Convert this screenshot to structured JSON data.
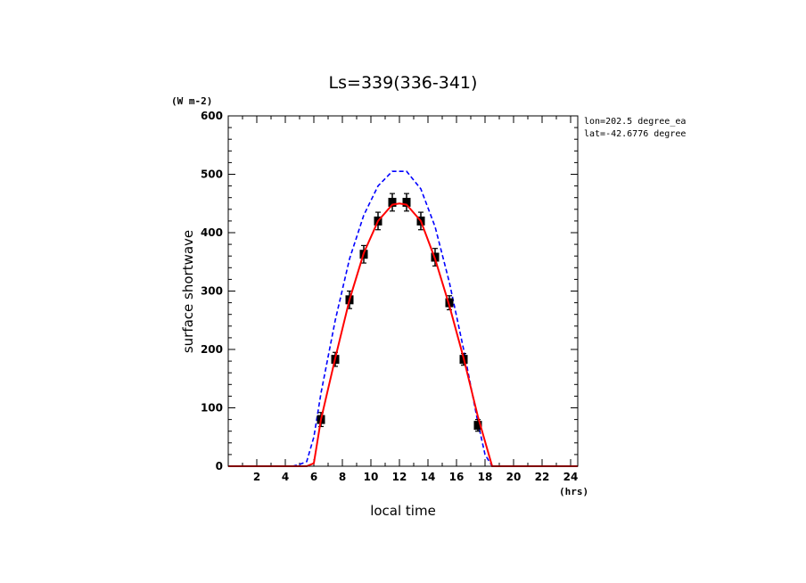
{
  "chart_data": {
    "type": "line",
    "title": "Ls=339(336-341)",
    "y_unit": "(W m-2)",
    "x_unit": "(hrs)",
    "xlabel": "local time",
    "ylabel": "surface shortwave",
    "annotations": [
      "lon=202.5 degree_ea",
      "lat=-42.6776 degree"
    ],
    "xlim": [
      0,
      24.5
    ],
    "ylim": [
      0,
      600
    ],
    "x_ticks": [
      2,
      4,
      6,
      8,
      10,
      12,
      14,
      16,
      18,
      20,
      22,
      24
    ],
    "y_ticks": [
      0,
      100,
      200,
      300,
      400,
      500,
      600
    ],
    "grid": false,
    "series": [
      {
        "style": "dashed",
        "color": "#0000ff",
        "x": [
          0,
          0.5,
          1.5,
          2.5,
          3.5,
          4.5,
          5.0,
          5.5,
          6.0,
          6.5,
          7.5,
          8.5,
          9.5,
          10.5,
          11.5,
          12.5,
          13.5,
          14.5,
          15.5,
          16.5,
          17.5,
          18.0,
          18.5,
          19.5,
          20.5,
          21.5,
          22.5,
          23.5,
          24.5
        ],
        "y": [
          0,
          0,
          0,
          0,
          0,
          0,
          3,
          8,
          50,
          125,
          250,
          355,
          430,
          480,
          505,
          505,
          475,
          410,
          315,
          200,
          75,
          20,
          0,
          0,
          0,
          0,
          0,
          0,
          0
        ]
      },
      {
        "style": "solid",
        "color": "#ff0000",
        "x": [
          0,
          0.5,
          1.5,
          2.5,
          3.5,
          4.5,
          5.5,
          6.0,
          6.5,
          7.5,
          8.5,
          9.5,
          10.5,
          11.5,
          12.0,
          12.5,
          13.5,
          14.5,
          15.5,
          16.5,
          17.5,
          18.5,
          19.5,
          20.5,
          21.5,
          22.5,
          23.5,
          24.5
        ],
        "y": [
          0,
          0,
          0,
          0,
          0,
          0,
          0,
          5,
          80,
          185,
          285,
          365,
          420,
          448,
          450,
          448,
          420,
          355,
          275,
          185,
          85,
          0,
          0,
          0,
          0,
          0,
          0,
          0
        ]
      },
      {
        "style": "markers",
        "color": "#000000",
        "x": [
          6.5,
          7.5,
          8.5,
          9.5,
          10.5,
          11.5,
          12.5,
          13.5,
          14.5,
          15.5,
          16.5,
          17.5
        ],
        "y": [
          80,
          183,
          285,
          363,
          420,
          452,
          452,
          420,
          358,
          280,
          183,
          70
        ],
        "err": [
          12,
          12,
          15,
          15,
          15,
          15,
          15,
          15,
          15,
          12,
          10,
          10
        ]
      }
    ]
  }
}
